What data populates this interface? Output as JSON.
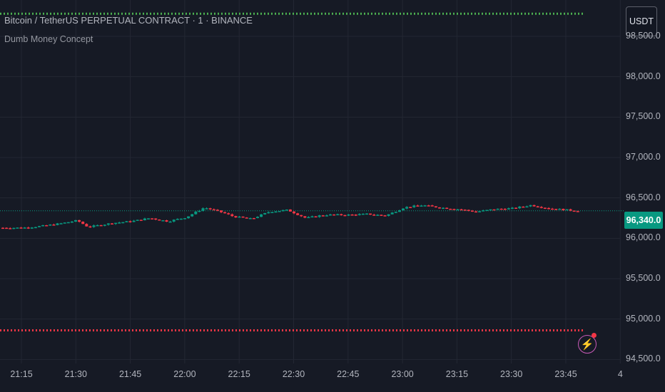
{
  "header": {
    "title": "Bitcoin / TetherUS PERPETUAL CONTRACT · 1 · BINANCE",
    "indicator": "Dumb Money Concept",
    "currency": "USDT"
  },
  "price": {
    "current": "96,340.0",
    "current_value": 96340
  },
  "colors": {
    "background": "#161a25",
    "grid": "#232733",
    "up": "#089981",
    "down": "#f23645",
    "upper_line": "#4caf50",
    "lower_line": "#f23645",
    "text": "#b2b5be"
  },
  "icons": {
    "alert": "lightning-alert-icon"
  },
  "chart_data": {
    "type": "candlestick",
    "y_ticks": [
      {
        "value": 98500,
        "label": "98,500.0"
      },
      {
        "value": 98000,
        "label": "98,000.0"
      },
      {
        "value": 97500,
        "label": "97,500.0"
      },
      {
        "value": 97000,
        "label": "97,000.0"
      },
      {
        "value": 96500,
        "label": "96,500.0"
      },
      {
        "value": 96000,
        "label": "96,000.0"
      },
      {
        "value": 95500,
        "label": "95,500.0"
      },
      {
        "value": 95000,
        "label": "95,000.0"
      },
      {
        "value": 94500,
        "label": "94,500.0"
      }
    ],
    "x_ticks": [
      "21:15",
      "21:30",
      "21:45",
      "22:00",
      "22:15",
      "22:30",
      "22:45",
      "23:00",
      "23:15",
      "23:30",
      "23:45",
      "4"
    ],
    "ylim": [
      94450,
      98950
    ],
    "upper_level": 98780,
    "lower_level": 94860,
    "series": [
      {
        "time": "21:15",
        "close": 96130
      },
      {
        "time": "21:20",
        "close": 96150
      },
      {
        "time": "21:25",
        "close": 96180
      },
      {
        "time": "21:30",
        "close": 96220
      },
      {
        "time": "21:33",
        "close": 96140
      },
      {
        "time": "21:40",
        "close": 96190
      },
      {
        "time": "21:45",
        "close": 96210
      },
      {
        "time": "21:50",
        "close": 96250
      },
      {
        "time": "21:55",
        "close": 96210
      },
      {
        "time": "22:00",
        "close": 96260
      },
      {
        "time": "22:05",
        "close": 96380
      },
      {
        "time": "22:10",
        "close": 96320
      },
      {
        "time": "22:13",
        "close": 96270
      },
      {
        "time": "22:18",
        "close": 96240
      },
      {
        "time": "22:23",
        "close": 96330
      },
      {
        "time": "22:28",
        "close": 96350
      },
      {
        "time": "22:33",
        "close": 96250
      },
      {
        "time": "22:38",
        "close": 96290
      },
      {
        "time": "22:45",
        "close": 96290
      },
      {
        "time": "22:50",
        "close": 96300
      },
      {
        "time": "22:55",
        "close": 96280
      },
      {
        "time": "23:00",
        "close": 96380
      },
      {
        "time": "23:05",
        "close": 96410
      },
      {
        "time": "23:10",
        "close": 96380
      },
      {
        "time": "23:15",
        "close": 96360
      },
      {
        "time": "23:20",
        "close": 96330
      },
      {
        "time": "23:25",
        "close": 96360
      },
      {
        "time": "23:30",
        "close": 96370
      },
      {
        "time": "23:35",
        "close": 96410
      },
      {
        "time": "23:40",
        "close": 96370
      },
      {
        "time": "23:45",
        "close": 96350
      },
      {
        "time": "23:48",
        "close": 96340
      }
    ]
  }
}
